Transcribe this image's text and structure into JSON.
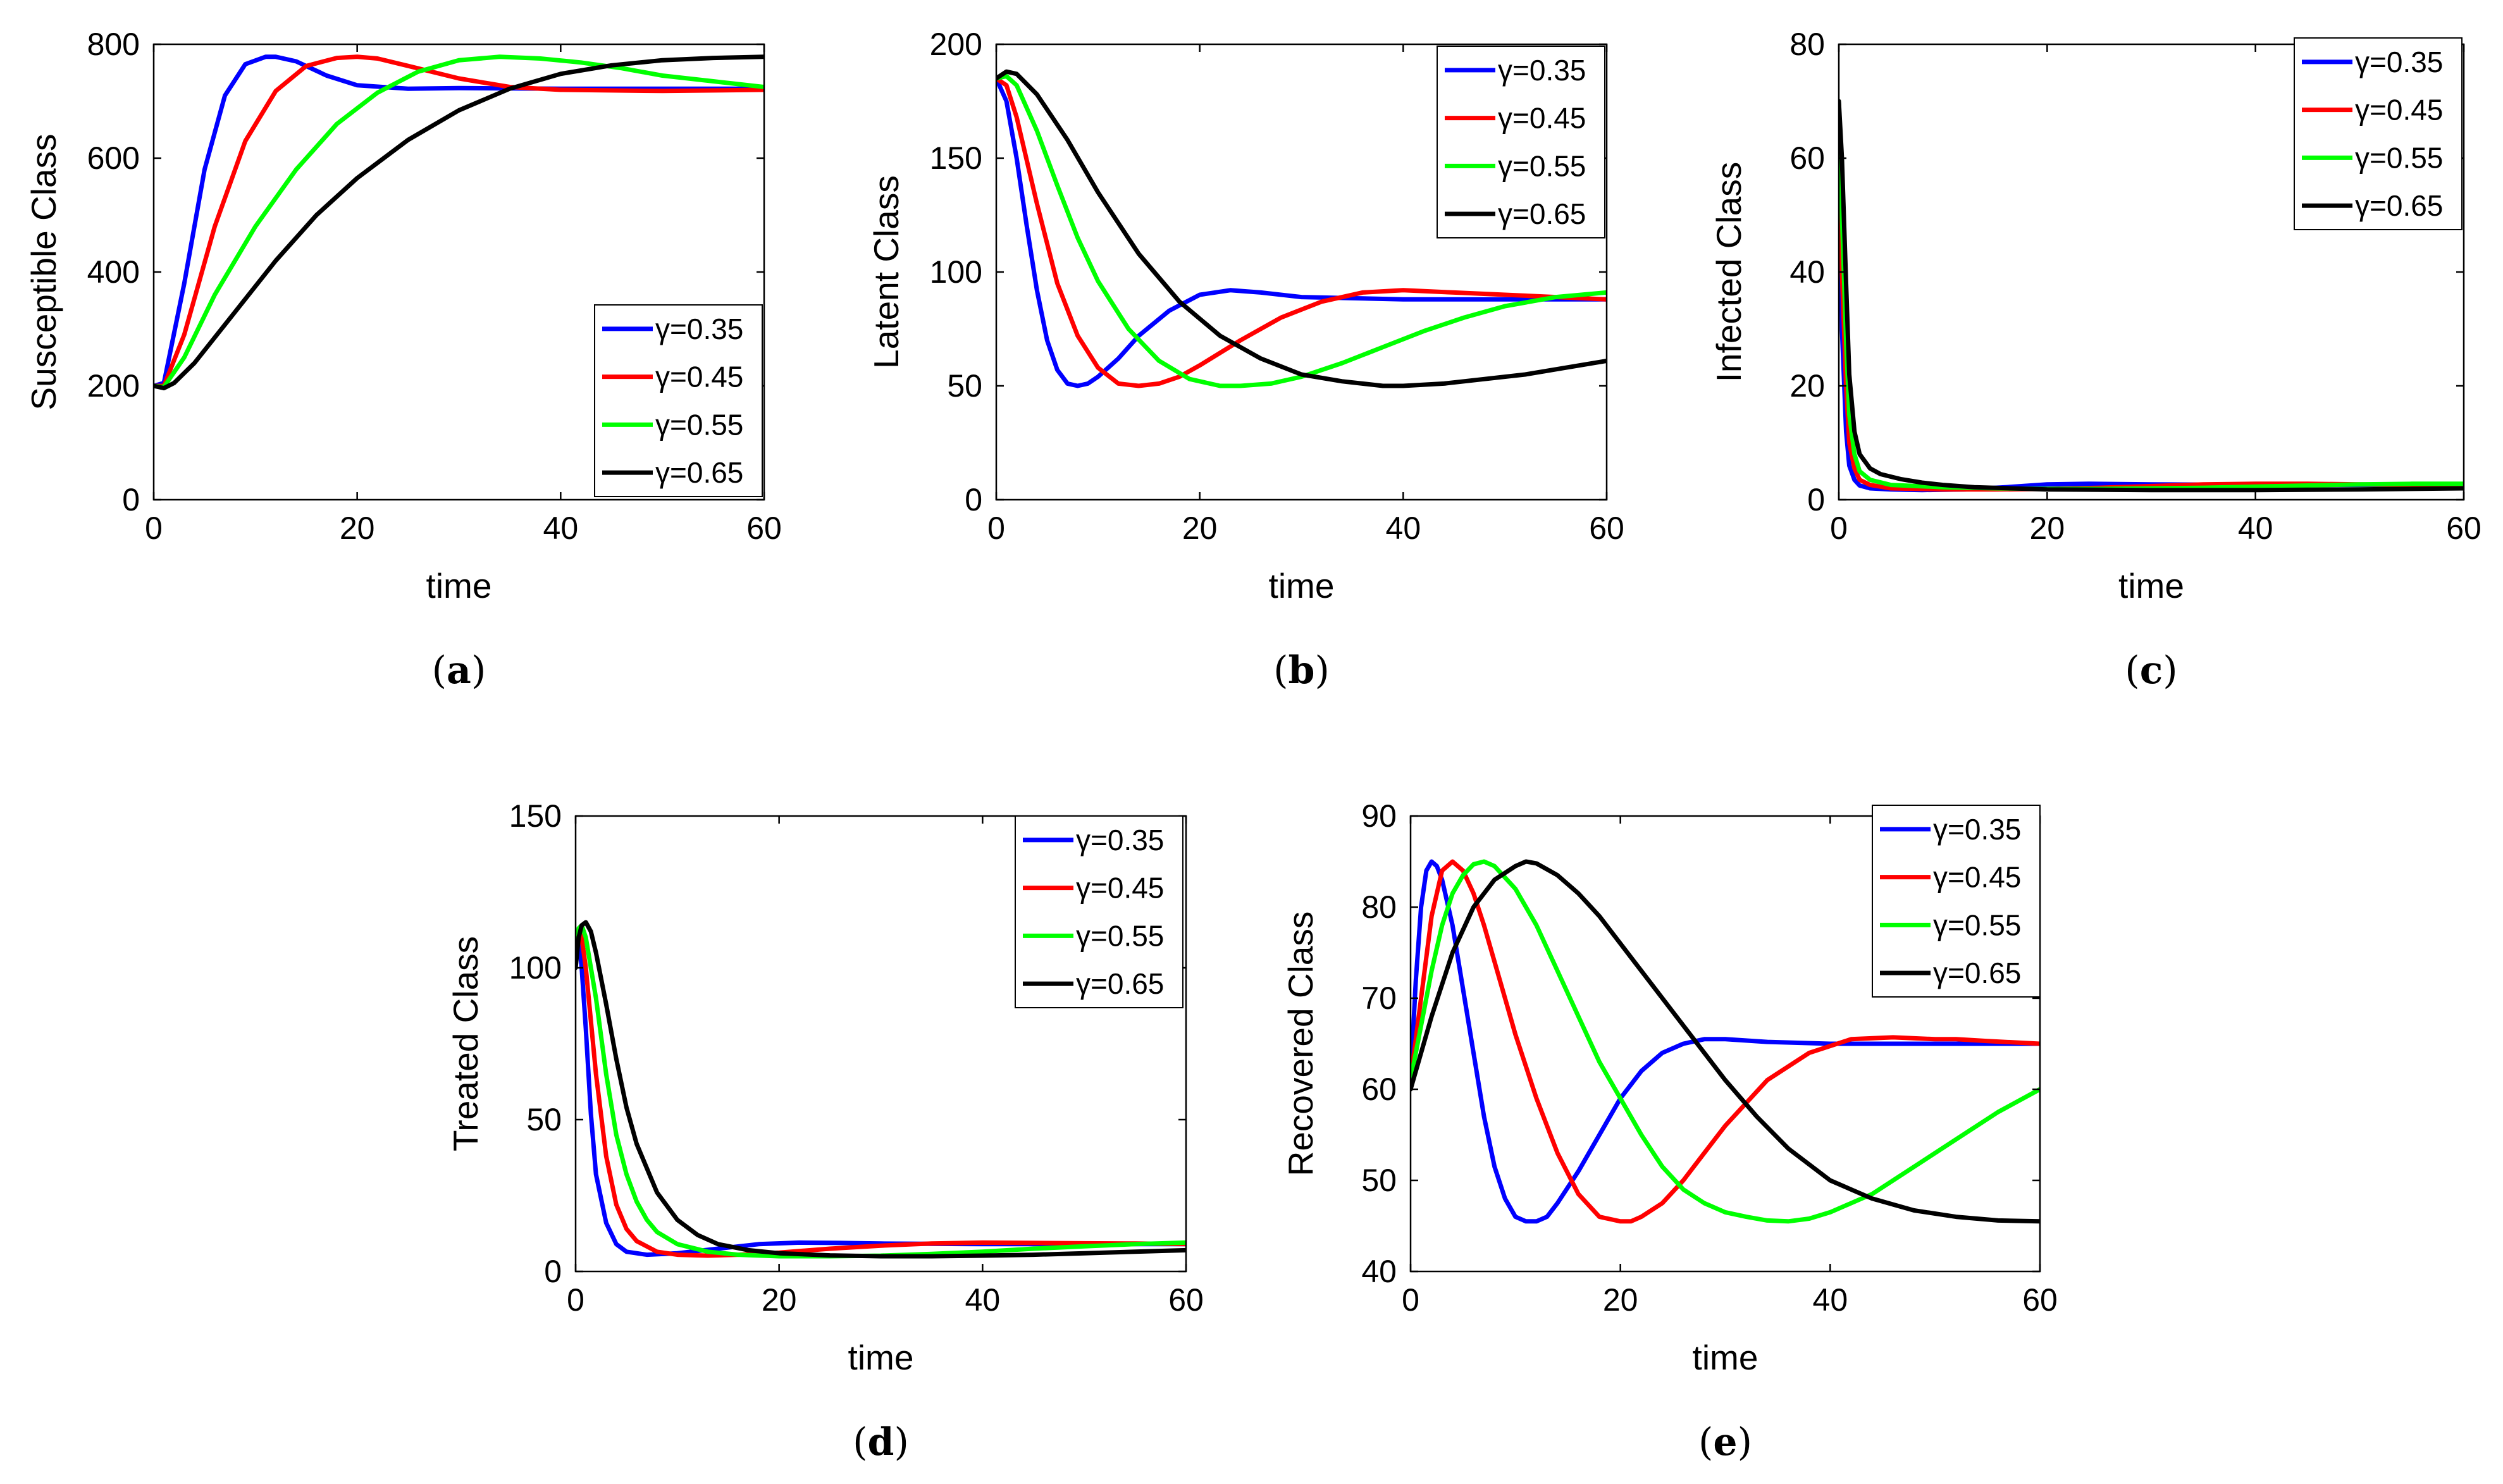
{
  "colors": {
    "blue": "#0000ff",
    "red": "#ff0000",
    "green": "#00ff00",
    "black": "#000000"
  },
  "chart_data": [
    {
      "id": "a",
      "type": "line",
      "caption": "(a)",
      "xlabel": "time",
      "ylabel": "Susceptible Class",
      "xlim": [
        0,
        60
      ],
      "ylim": [
        0,
        800
      ],
      "xticks": [
        0,
        20,
        40,
        60
      ],
      "yticks": [
        0,
        200,
        400,
        600,
        800
      ],
      "legend_position": "bottom-right",
      "series": [
        {
          "name": "γ=0.35",
          "color": "#0000ff",
          "x": [
            0,
            1,
            3,
            5,
            7,
            9,
            11,
            12,
            14,
            17,
            20,
            25,
            30,
            40,
            50,
            60
          ],
          "y": [
            200,
            205,
            380,
            580,
            710,
            765,
            778,
            778,
            770,
            745,
            728,
            722,
            723,
            722,
            722,
            722
          ]
        },
        {
          "name": "γ=0.45",
          "color": "#ff0000",
          "x": [
            0,
            1,
            3,
            6,
            9,
            12,
            15,
            18,
            20,
            22,
            25,
            30,
            35,
            40,
            50,
            60
          ],
          "y": [
            200,
            200,
            290,
            480,
            630,
            718,
            762,
            776,
            778,
            775,
            762,
            740,
            725,
            720,
            718,
            720
          ]
        },
        {
          "name": "γ=0.55",
          "color": "#00ff00",
          "x": [
            0,
            1,
            3,
            6,
            10,
            14,
            18,
            22,
            26,
            30,
            34,
            38,
            42,
            46,
            50,
            55,
            60
          ],
          "y": [
            200,
            198,
            250,
            360,
            480,
            580,
            660,
            715,
            752,
            772,
            778,
            775,
            768,
            758,
            745,
            735,
            725
          ]
        },
        {
          "name": "γ=0.65",
          "color": "#000000",
          "x": [
            0,
            1,
            2,
            4,
            8,
            12,
            16,
            20,
            25,
            30,
            35,
            40,
            45,
            50,
            55,
            60
          ],
          "y": [
            200,
            196,
            205,
            240,
            330,
            420,
            500,
            565,
            632,
            684,
            722,
            748,
            763,
            772,
            776,
            778
          ]
        }
      ]
    },
    {
      "id": "b",
      "type": "line",
      "caption": "(b)",
      "xlabel": "time",
      "ylabel": "Latent Class",
      "xlim": [
        0,
        60
      ],
      "ylim": [
        0,
        200
      ],
      "xticks": [
        0,
        20,
        40,
        60
      ],
      "yticks": [
        0,
        50,
        100,
        150,
        200
      ],
      "legend_position": "top-right",
      "series": [
        {
          "name": "γ=0.35",
          "color": "#0000ff",
          "x": [
            0,
            1,
            2,
            3,
            4,
            5,
            6,
            7,
            8,
            9,
            10,
            12,
            14,
            17,
            20,
            23,
            26,
            30,
            40,
            50,
            60
          ],
          "y": [
            185,
            175,
            150,
            120,
            92,
            70,
            57,
            51,
            50,
            51,
            54,
            62,
            72,
            83,
            90,
            92,
            91,
            89,
            88,
            88,
            88
          ]
        },
        {
          "name": "γ=0.45",
          "color": "#ff0000",
          "x": [
            0,
            1,
            2,
            4,
            6,
            8,
            10,
            12,
            14,
            16,
            18,
            20,
            24,
            28,
            32,
            36,
            40,
            45,
            50,
            55,
            60
          ],
          "y": [
            185,
            182,
            168,
            130,
            95,
            72,
            58,
            51,
            50,
            51,
            54,
            59,
            70,
            80,
            87,
            91,
            92,
            91,
            90,
            89,
            88
          ]
        },
        {
          "name": "γ=0.55",
          "color": "#00ff00",
          "x": [
            0,
            1,
            2,
            4,
            6,
            8,
            10,
            13,
            16,
            19,
            22,
            24,
            27,
            30,
            34,
            38,
            42,
            46,
            50,
            55,
            60
          ],
          "y": [
            185,
            186,
            182,
            162,
            138,
            115,
            96,
            75,
            61,
            53,
            50,
            50,
            51,
            54,
            60,
            67,
            74,
            80,
            85,
            89,
            91
          ]
        },
        {
          "name": "γ=0.65",
          "color": "#000000",
          "x": [
            0,
            1,
            2,
            4,
            7,
            10,
            14,
            18,
            22,
            26,
            30,
            34,
            38,
            40,
            44,
            48,
            52,
            56,
            60
          ],
          "y": [
            185,
            188,
            187,
            178,
            158,
            135,
            108,
            87,
            72,
            62,
            55,
            52,
            50,
            50,
            51,
            53,
            55,
            58,
            61
          ]
        }
      ]
    },
    {
      "id": "c",
      "type": "line",
      "caption": "(c)",
      "xlabel": "time",
      "ylabel": "Infected Class",
      "xlim": [
        0,
        60
      ],
      "ylim": [
        0,
        80
      ],
      "xticks": [
        0,
        20,
        40,
        60
      ],
      "yticks": [
        0,
        20,
        40,
        60,
        80
      ],
      "legend_position": "top-right",
      "series": [
        {
          "name": "γ=0.35",
          "color": "#0000ff",
          "x": [
            0,
            0.3,
            0.7,
            1,
            1.5,
            2,
            3,
            5,
            8,
            12,
            16,
            20,
            24,
            30,
            40,
            50,
            60
          ],
          "y": [
            70,
            30,
            12,
            6,
            3.5,
            2.5,
            2,
            1.8,
            1.7,
            1.8,
            2.2,
            2.7,
            2.8,
            2.7,
            2.6,
            2.6,
            2.6
          ]
        },
        {
          "name": "γ=0.45",
          "color": "#ff0000",
          "x": [
            0,
            0.3,
            0.7,
            1,
            1.5,
            2,
            3,
            5,
            10,
            15,
            20,
            25,
            30,
            35,
            40,
            45,
            50,
            55,
            60
          ],
          "y": [
            70,
            40,
            20,
            10,
            5.5,
            3.5,
            2.6,
            2,
            1.8,
            1.8,
            1.9,
            2.1,
            2.4,
            2.7,
            2.8,
            2.8,
            2.7,
            2.6,
            2.6
          ]
        },
        {
          "name": "γ=0.55",
          "color": "#00ff00",
          "x": [
            0,
            0.3,
            0.7,
            1,
            1.5,
            2,
            3,
            5,
            10,
            15,
            20,
            25,
            30,
            35,
            40,
            45,
            50,
            55,
            60
          ],
          "y": [
            70,
            50,
            28,
            15,
            8,
            5,
            3.5,
            2.6,
            2.2,
            2,
            1.9,
            1.9,
            2,
            2.1,
            2.3,
            2.5,
            2.7,
            2.8,
            2.8
          ]
        },
        {
          "name": "γ=0.65",
          "color": "#000000",
          "x": [
            0,
            0.3,
            0.7,
            1,
            1.5,
            2,
            3,
            4,
            6,
            8,
            10,
            13,
            20,
            30,
            40,
            50,
            60
          ],
          "y": [
            70,
            60,
            38,
            22,
            12,
            8,
            5.5,
            4.5,
            3.6,
            3,
            2.6,
            2.2,
            1.8,
            1.7,
            1.7,
            1.8,
            2
          ]
        }
      ]
    },
    {
      "id": "d",
      "type": "line",
      "caption": "(d)",
      "xlabel": "time",
      "ylabel": "Treated Class",
      "xlim": [
        0,
        60
      ],
      "ylim": [
        0,
        150
      ],
      "xticks": [
        0,
        20,
        40,
        60
      ],
      "yticks": [
        0,
        50,
        100,
        150
      ],
      "legend_position": "top-right",
      "series": [
        {
          "name": "γ=0.35",
          "color": "#0000ff",
          "x": [
            0,
            0.3,
            0.6,
            1,
            1.5,
            2,
            3,
            4,
            5,
            7,
            10,
            14,
            18,
            22,
            26,
            30,
            40,
            50,
            60
          ],
          "y": [
            105,
            110,
            100,
            80,
            52,
            32,
            16,
            9,
            6.5,
            5.5,
            6,
            7.5,
            9,
            9.5,
            9.4,
            9.2,
            9,
            9,
            9
          ]
        },
        {
          "name": "γ=0.45",
          "color": "#ff0000",
          "x": [
            0,
            0.3,
            0.6,
            1,
            2,
            3,
            4,
            5,
            6,
            8,
            10,
            13,
            16,
            20,
            25,
            30,
            35,
            40,
            45,
            50,
            55,
            60
          ],
          "y": [
            105,
            112,
            110,
            100,
            65,
            38,
            22,
            14,
            10,
            6.5,
            5.5,
            5.2,
            5.5,
            6.2,
            7.5,
            8.5,
            9.2,
            9.5,
            9.4,
            9.3,
            9.2,
            9
          ]
        },
        {
          "name": "γ=0.55",
          "color": "#00ff00",
          "x": [
            0,
            0.3,
            0.6,
            1,
            2,
            3,
            4,
            5,
            6,
            7,
            8,
            10,
            13,
            16,
            20,
            25,
            30,
            35,
            40,
            45,
            50,
            55,
            60
          ],
          "y": [
            105,
            113,
            114,
            110,
            90,
            65,
            45,
            32,
            23,
            17,
            13,
            9,
            6.5,
            5.5,
            5,
            5,
            5.2,
            5.8,
            6.5,
            7.5,
            8.3,
            9,
            9.5
          ]
        },
        {
          "name": "γ=0.65",
          "color": "#000000",
          "x": [
            0,
            0.3,
            0.6,
            1,
            1.5,
            2,
            3,
            4,
            5,
            6,
            8,
            10,
            12,
            14,
            17,
            20,
            25,
            30,
            35,
            40,
            45,
            50,
            55,
            60
          ],
          "y": [
            100,
            110,
            114,
            115,
            112,
            105,
            88,
            70,
            54,
            42,
            26,
            17,
            12,
            9,
            7,
            6,
            5.3,
            5,
            5,
            5.2,
            5.5,
            6,
            6.5,
            7
          ]
        }
      ]
    },
    {
      "id": "e",
      "type": "line",
      "caption": "(e)",
      "xlabel": "time",
      "ylabel": "Recovered Class",
      "xlim": [
        0,
        60
      ],
      "ylim": [
        40,
        90
      ],
      "xticks": [
        0,
        20,
        40,
        60
      ],
      "yticks": [
        40,
        50,
        60,
        70,
        80,
        90
      ],
      "legend_position": "top-right",
      "series": [
        {
          "name": "γ=0.35",
          "color": "#0000ff",
          "x": [
            0,
            0.5,
            1,
            1.5,
            2,
            2.5,
            3,
            4,
            5,
            6,
            7,
            8,
            9,
            10,
            11,
            12,
            13,
            14,
            16,
            18,
            20,
            22,
            24,
            26,
            28,
            30,
            34,
            40,
            50,
            60
          ],
          "y": [
            61,
            72,
            80,
            84,
            85,
            84.5,
            83,
            78,
            71,
            64,
            57,
            51.5,
            48,
            46,
            45.5,
            45.5,
            46,
            47.5,
            51,
            55,
            59,
            62,
            64,
            65,
            65.5,
            65.5,
            65.2,
            65,
            65,
            65
          ]
        },
        {
          "name": "γ=0.45",
          "color": "#ff0000",
          "x": [
            0,
            1,
            2,
            3,
            4,
            5,
            6,
            7,
            8,
            9,
            10,
            12,
            14,
            16,
            18,
            20,
            21,
            22,
            24,
            26,
            28,
            30,
            34,
            38,
            42,
            46,
            50,
            52,
            55,
            60
          ],
          "y": [
            61,
            70,
            79,
            84,
            85,
            84,
            81.5,
            78,
            74,
            70,
            66,
            59,
            53,
            48.5,
            46,
            45.5,
            45.5,
            46,
            47.5,
            50,
            53,
            56,
            61,
            64,
            65.5,
            65.7,
            65.5,
            65.5,
            65.3,
            65
          ]
        },
        {
          "name": "γ=0.55",
          "color": "#00ff00",
          "x": [
            0,
            1,
            2,
            3,
            4,
            5,
            6,
            7,
            8,
            10,
            12,
            14,
            16,
            18,
            20,
            22,
            24,
            26,
            28,
            30,
            32,
            34,
            36,
            38,
            40,
            44,
            48,
            52,
            56,
            60
          ],
          "y": [
            61,
            67,
            73,
            78,
            81.5,
            83.5,
            84.7,
            85,
            84.5,
            82,
            78,
            73,
            68,
            63,
            59,
            55,
            51.5,
            49,
            47.5,
            46.5,
            46,
            45.6,
            45.5,
            45.8,
            46.5,
            48.5,
            51.5,
            54.5,
            57.5,
            60
          ]
        },
        {
          "name": "γ=0.65",
          "color": "#000000",
          "x": [
            0,
            2,
            4,
            6,
            8,
            10,
            11,
            12,
            14,
            16,
            18,
            20,
            22,
            24,
            26,
            28,
            30,
            33,
            36,
            40,
            44,
            48,
            52,
            56,
            60
          ],
          "y": [
            60,
            68,
            75,
            80,
            83,
            84.5,
            85,
            84.8,
            83.5,
            81.5,
            79,
            76,
            73,
            70,
            67,
            64,
            61,
            57,
            53.5,
            50,
            48,
            46.7,
            46,
            45.6,
            45.5
          ]
        }
      ]
    }
  ]
}
